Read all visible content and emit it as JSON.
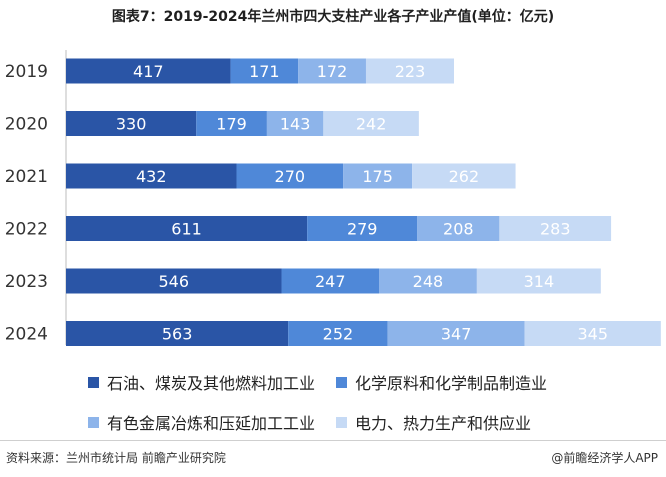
{
  "title": "图表7：2019-2024年兰州市四大支柱产业各子产业产值(单位：亿元)",
  "source": "资料来源：兰州市统计局 前瞻产业研究院",
  "brand": "@前瞻经济学人APP",
  "chart_data": {
    "type": "bar",
    "orientation": "horizontal",
    "stacked": true,
    "categories": [
      "2019",
      "2020",
      "2021",
      "2022",
      "2023",
      "2024"
    ],
    "series": [
      {
        "name": "石油、煤炭及其他燃料加工业",
        "color": "#2a55a6",
        "values": [
          417,
          330,
          432,
          611,
          546,
          563
        ]
      },
      {
        "name": "化学原料和化学制品制造业",
        "color": "#4f88d8",
        "values": [
          171,
          179,
          270,
          279,
          247,
          252
        ]
      },
      {
        "name": "有色金属冶炼和压延加工工业",
        "color": "#8db4ea",
        "values": [
          172,
          143,
          175,
          208,
          248,
          347
        ]
      },
      {
        "name": "电力、热力生产和供应业",
        "color": "#c6daf5",
        "values": [
          223,
          242,
          262,
          283,
          314,
          345
        ]
      }
    ],
    "xlim": [
      0,
      1510
    ],
    "grid": false,
    "legend_position": "bottom",
    "data_labels": true
  }
}
